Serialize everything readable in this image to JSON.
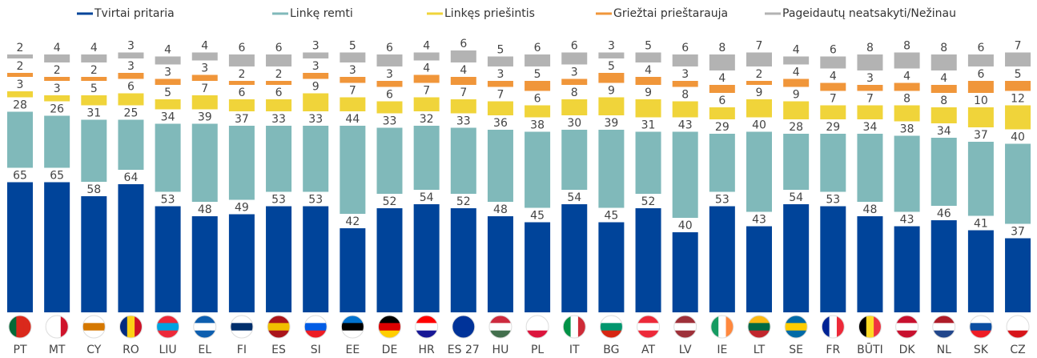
{
  "chart_data": {
    "type": "stacked_bar",
    "categories": [
      "PT",
      "MT",
      "CY",
      "RO",
      "LIU",
      "EL",
      "FI",
      "ES",
      "SI",
      "EE",
      "DE",
      "HR",
      "ES 27",
      "HU",
      "PL",
      "IT",
      "BG",
      "AT",
      "LV",
      "IE",
      "LT",
      "SE",
      "FR",
      "BŪTI",
      "DK",
      "NL",
      "SK",
      "CZ"
    ],
    "series": [
      {
        "name": "Tvirtai pritaria",
        "color": "#00449a",
        "values": [
          65,
          65,
          58,
          64,
          53,
          48,
          49,
          53,
          53,
          42,
          52,
          54,
          52,
          48,
          45,
          54,
          45,
          52,
          40,
          53,
          43,
          54,
          53,
          48,
          43,
          46,
          41,
          37
        ]
      },
      {
        "name": "Linkę remti",
        "color": "#80b9ba",
        "values": [
          28,
          26,
          31,
          25,
          34,
          39,
          37,
          33,
          33,
          44,
          33,
          32,
          33,
          36,
          38,
          30,
          39,
          31,
          43,
          29,
          40,
          28,
          29,
          34,
          38,
          34,
          37,
          40
        ]
      },
      {
        "name": "Linkęs priešintis",
        "color": "#f0d43a",
        "values": [
          3,
          3,
          5,
          6,
          5,
          7,
          6,
          6,
          9,
          7,
          6,
          7,
          7,
          7,
          6,
          8,
          9,
          9,
          8,
          6,
          9,
          9,
          7,
          7,
          8,
          8,
          10,
          12
        ]
      },
      {
        "name": "Griežtai prieštarauja",
        "color": "#f0963a",
        "values": [
          2,
          2,
          2,
          3,
          3,
          3,
          2,
          2,
          3,
          3,
          3,
          4,
          4,
          3,
          5,
          3,
          5,
          4,
          3,
          4,
          2,
          4,
          4,
          3,
          4,
          4,
          6,
          5
        ]
      },
      {
        "name": "Pageidautų neatsakyti/Nežinau",
        "color": "#b3b3b3",
        "values": [
          2,
          4,
          4,
          3,
          4,
          4,
          6,
          6,
          3,
          5,
          6,
          4,
          6,
          5,
          6,
          6,
          3,
          5,
          6,
          8,
          7,
          4,
          6,
          8,
          8,
          8,
          6,
          7
        ]
      }
    ]
  }
}
